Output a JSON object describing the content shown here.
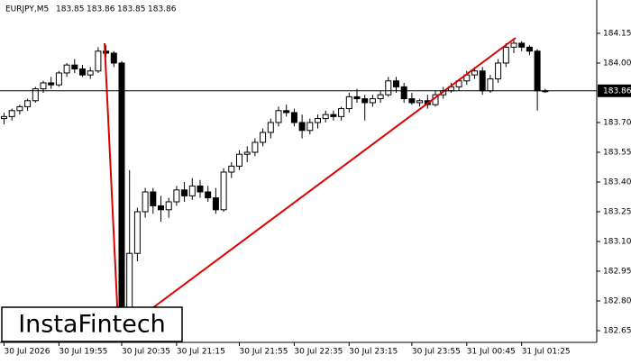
{
  "chart_data": {
    "type": "candlestick",
    "title": "EURJPY,M5",
    "header_values": [
      183.85,
      183.86,
      183.85,
      183.86
    ],
    "bid": 183.86,
    "logo": "InstaFintech",
    "ylim": [
      182.591,
      184.318
    ],
    "yticks": [
      184.15,
      {
        "value": 184.0,
        "label": "184.00"
      },
      {
        "value": 183.7,
        "label": "183.70"
      },
      183.55,
      {
        "value": 183.4,
        "label": "183.40"
      },
      183.25,
      {
        "value": 183.1,
        "label": "183.10"
      },
      182.95,
      {
        "value": 182.8,
        "label": "182.80"
      },
      182.65
    ],
    "x": [
      "30 Jul 2026",
      null,
      null,
      null,
      null,
      null,
      null,
      "30 Jul 19:55",
      null,
      null,
      null,
      null,
      null,
      null,
      null,
      "30 Jul 20:35",
      null,
      null,
      null,
      null,
      null,
      null,
      "30 Jul 21:15",
      null,
      null,
      null,
      null,
      null,
      null,
      null,
      "30 Jul 21:55",
      null,
      null,
      null,
      null,
      null,
      null,
      "30 Jul 22:35",
      null,
      null,
      null,
      null,
      null,
      null,
      "30 Jul 23:15",
      null,
      null,
      null,
      null,
      null,
      null,
      null,
      "30 Jul 23:55",
      null,
      null,
      null,
      null,
      null,
      null,
      "31 Jul 00:45",
      null,
      null,
      null,
      null,
      null,
      null,
      "31 Jul 01:25",
      null,
      null,
      null
    ],
    "open": [
      183.72,
      183.73,
      183.76,
      183.78,
      183.81,
      183.87,
      183.9,
      183.89,
      183.95,
      183.99,
      183.97,
      183.94,
      183.96,
      184.06,
      184.05,
      184.0,
      182.66,
      183.04,
      183.25,
      183.35,
      183.28,
      183.26,
      183.3,
      183.36,
      183.33,
      183.38,
      183.35,
      183.32,
      183.26,
      183.45,
      183.48,
      183.54,
      183.55,
      183.6,
      183.65,
      183.7,
      183.76,
      183.75,
      183.7,
      183.66,
      183.7,
      183.72,
      183.74,
      183.73,
      183.77,
      183.83,
      183.82,
      183.8,
      183.82,
      183.84,
      183.91,
      183.88,
      183.82,
      183.8,
      183.81,
      183.79,
      183.84,
      183.86,
      183.88,
      183.91,
      183.94,
      183.96,
      183.86,
      183.92,
      184.0,
      184.08,
      184.1,
      184.08,
      184.06,
      183.86
    ],
    "high": [
      183.75,
      183.77,
      183.79,
      183.82,
      183.88,
      183.91,
      183.93,
      183.96,
      184.0,
      184.02,
      183.99,
      183.98,
      184.08,
      184.09,
      184.06,
      184.01,
      183.46,
      183.27,
      183.37,
      183.37,
      183.33,
      183.32,
      183.38,
      183.4,
      183.42,
      183.41,
      183.38,
      183.37,
      183.47,
      183.5,
      183.56,
      183.58,
      183.62,
      183.67,
      183.72,
      183.78,
      183.79,
      183.77,
      183.74,
      183.72,
      183.74,
      183.76,
      183.76,
      183.78,
      183.85,
      183.87,
      183.84,
      183.84,
      183.86,
      183.93,
      183.93,
      183.9,
      183.85,
      183.82,
      183.84,
      183.86,
      183.88,
      183.9,
      183.92,
      183.96,
      183.98,
      183.98,
      183.94,
      184.02,
      184.1,
      184.12,
      184.11,
      184.09,
      184.07,
      183.87
    ],
    "low": [
      183.69,
      183.71,
      183.74,
      183.76,
      183.8,
      183.85,
      183.87,
      183.88,
      183.93,
      183.95,
      183.93,
      183.92,
      183.95,
      184.03,
      183.98,
      182.62,
      182.62,
      183.0,
      183.22,
      183.24,
      183.2,
      183.22,
      183.28,
      183.3,
      183.31,
      183.32,
      183.3,
      183.24,
      183.25,
      183.42,
      183.46,
      183.5,
      183.53,
      183.58,
      183.62,
      183.68,
      183.73,
      183.68,
      183.62,
      183.64,
      183.67,
      183.7,
      183.71,
      183.71,
      183.75,
      183.8,
      183.71,
      183.78,
      183.8,
      183.83,
      183.85,
      183.8,
      183.79,
      183.78,
      183.77,
      183.78,
      183.82,
      183.85,
      183.86,
      183.89,
      183.92,
      183.84,
      183.85,
      183.9,
      183.98,
      184.05,
      184.06,
      184.04,
      183.76,
      183.85
    ],
    "close": [
      183.73,
      183.76,
      183.78,
      183.81,
      183.87,
      183.9,
      183.89,
      183.95,
      183.99,
      183.97,
      183.94,
      183.96,
      184.06,
      184.05,
      184.0,
      182.66,
      183.04,
      183.25,
      183.35,
      183.28,
      183.26,
      183.3,
      183.36,
      183.33,
      183.38,
      183.35,
      183.32,
      183.26,
      183.45,
      183.48,
      183.54,
      183.55,
      183.6,
      183.65,
      183.7,
      183.76,
      183.75,
      183.7,
      183.66,
      183.7,
      183.72,
      183.74,
      183.73,
      183.77,
      183.83,
      183.82,
      183.8,
      183.82,
      183.84,
      183.91,
      183.88,
      183.82,
      183.8,
      183.81,
      183.79,
      183.84,
      183.86,
      183.88,
      183.91,
      183.94,
      183.96,
      183.86,
      183.92,
      184.0,
      184.08,
      184.1,
      184.08,
      184.06,
      183.86,
      183.86
    ]
  }
}
